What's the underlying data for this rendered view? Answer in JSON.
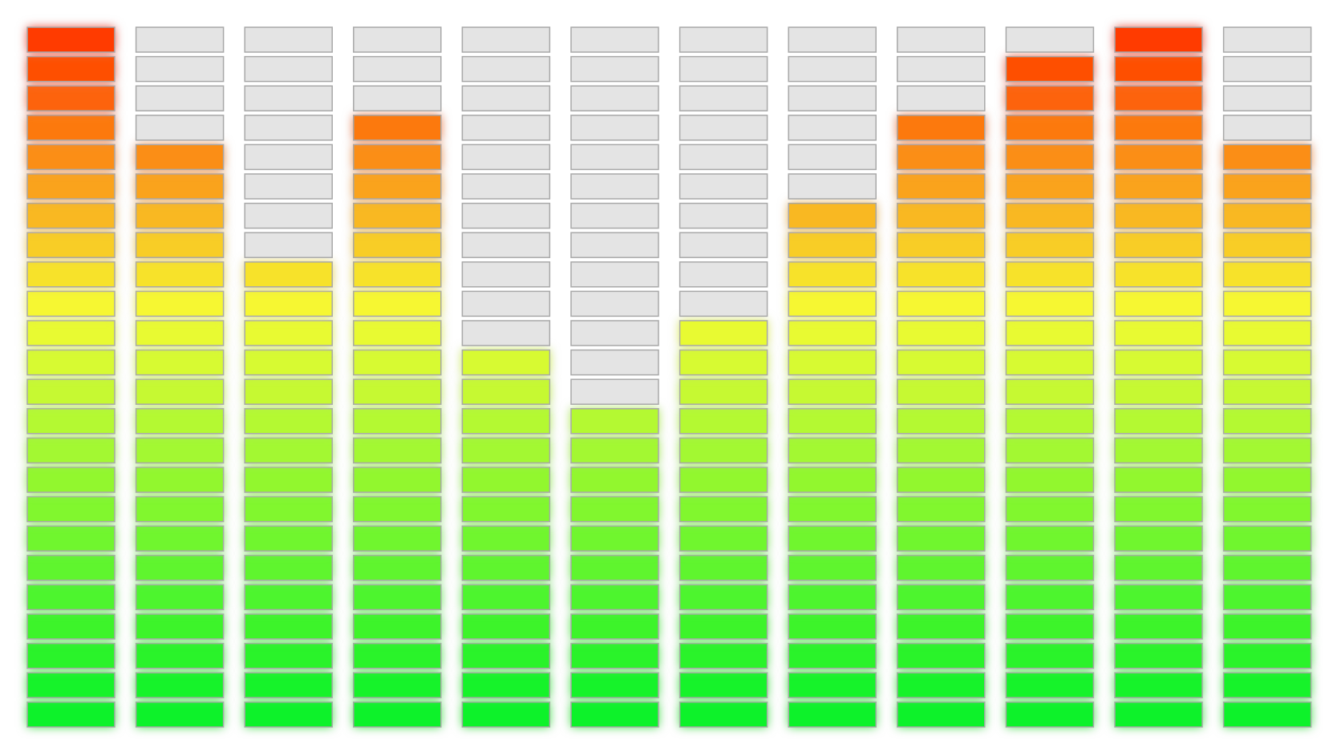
{
  "chart_data": {
    "type": "level-meter",
    "values": [
      24,
      20,
      16,
      21,
      13,
      11,
      14,
      18,
      21,
      23,
      24,
      20
    ],
    "ylim": [
      0,
      24
    ],
    "colors": {
      "low": "#08f22a",
      "mid": "#f6fb33",
      "high": "#ff3a00",
      "off": "#e4e4e4"
    }
  }
}
